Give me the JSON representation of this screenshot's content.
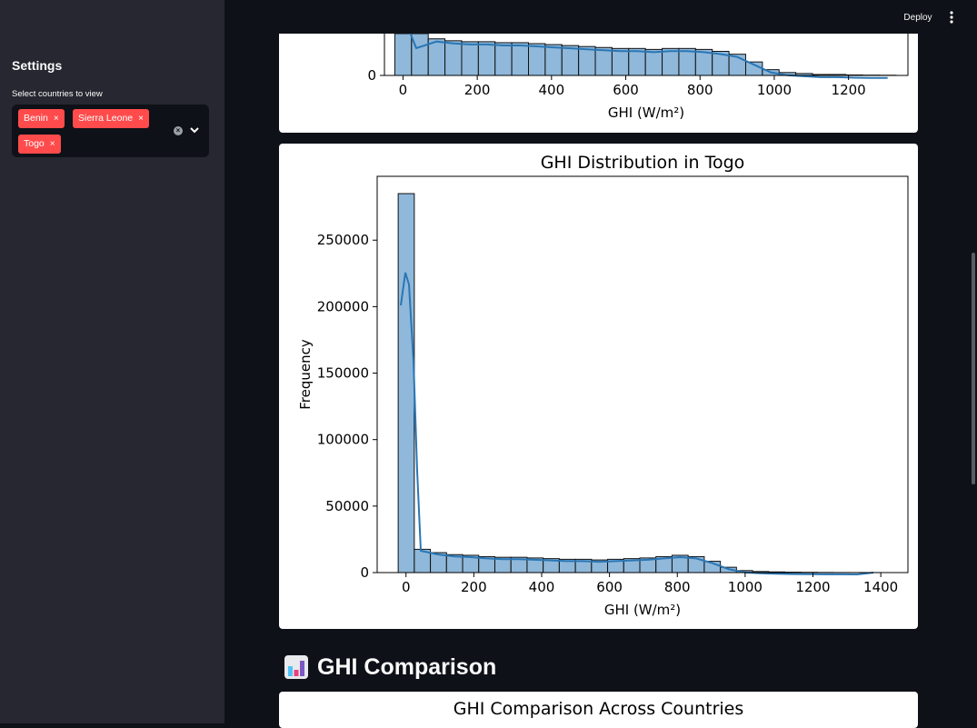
{
  "sidebar": {
    "title": "Settings",
    "select_label": "Select countries to view",
    "selected_countries": [
      "Benin",
      "Sierra Leone",
      "Togo"
    ],
    "remove_glyph": "×"
  },
  "header": {
    "deploy_label": "Deploy",
    "menu_icon": "vertical-ellipsis-icon"
  },
  "section": {
    "heading": "GHI Comparison",
    "icon": "bar-chart-icon"
  },
  "compare_chart": {
    "title": "GHI Comparison Across Countries"
  },
  "chart_data": [
    {
      "type": "bar",
      "title": "",
      "xlabel": "GHI (W/m²)",
      "ylabel": "",
      "xlim": [
        -50,
        1360
      ],
      "x_ticks": [
        0,
        200,
        400,
        600,
        800,
        1000,
        1200
      ],
      "y_ticks": [
        0
      ],
      "bin_width": 45,
      "bin_start": -22,
      "bar_values_fraction_of_axis": [
        1.2,
        0.55,
        0.38,
        0.36,
        0.35,
        0.35,
        0.34,
        0.34,
        0.33,
        0.32,
        0.31,
        0.3,
        0.29,
        0.28,
        0.28,
        0.27,
        0.28,
        0.28,
        0.27,
        0.25,
        0.22,
        0.14,
        0.06,
        0.03,
        0.02,
        0.01,
        0.01,
        0.005,
        0.003,
        0.002,
        0.001
      ],
      "kde": true,
      "grid": false
    },
    {
      "type": "bar",
      "title": "GHI Distribution in Togo",
      "xlabel": "GHI (W/m²)",
      "ylabel": "Frequency",
      "xlim": [
        -85,
        1480
      ],
      "ylim": [
        0,
        298000
      ],
      "x_ticks": [
        0,
        200,
        400,
        600,
        800,
        1000,
        1200,
        1400
      ],
      "y_ticks": [
        0,
        50000,
        100000,
        150000,
        200000,
        250000
      ],
      "bin_width": 47.5,
      "bin_start": -23,
      "values": [
        285000,
        17500,
        15000,
        13500,
        13000,
        12000,
        11500,
        11500,
        11000,
        10500,
        10000,
        10000,
        9500,
        10000,
        10500,
        11000,
        12000,
        13000,
        12000,
        8500,
        4000,
        1500,
        800,
        500,
        300,
        200,
        100,
        50,
        30,
        20
      ],
      "kde": true,
      "grid": false
    }
  ]
}
